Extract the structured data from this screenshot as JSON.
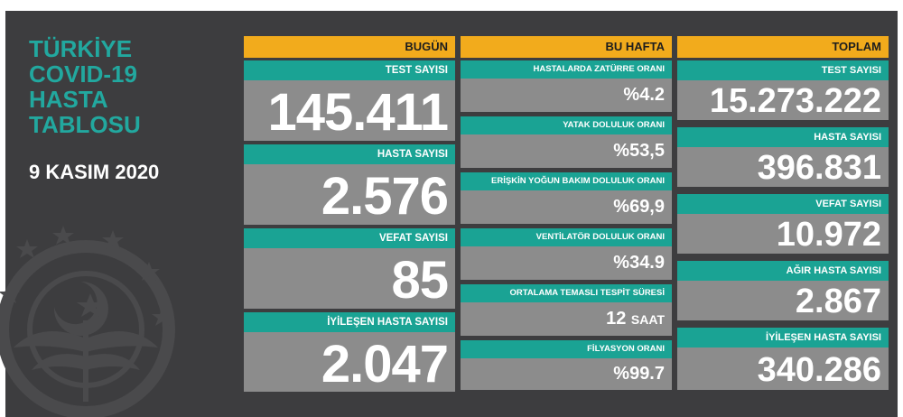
{
  "title": [
    "TÜRKİYE",
    "COVID-19",
    "HASTA",
    "TABLOSU"
  ],
  "date": "9 KASIM 2020",
  "columns": {
    "today": {
      "header": "BUGÜN",
      "items": [
        {
          "label": "TEST SAYISI",
          "value": "145.411"
        },
        {
          "label": "HASTA SAYISI",
          "value": "2.576"
        },
        {
          "label": "VEFAT SAYISI",
          "value": "85"
        },
        {
          "label": "İYİLEŞEN HASTA SAYISI",
          "value": "2.047"
        }
      ]
    },
    "week": {
      "header": "BU HAFTA",
      "items": [
        {
          "label": "HASTALARDA ZATÜRRE ORANI",
          "value": "%4.2"
        },
        {
          "label": "YATAK DOLULUK ORANI",
          "value": "%53,5"
        },
        {
          "label": "ERİŞKİN YOĞUN BAKIM DOLULUK ORANI",
          "value": "%69,9"
        },
        {
          "label": "VENTİLATÖR DOLULUK ORANI",
          "value": "%34.9"
        },
        {
          "label": "ORTALAMA TEMASLI TESPİT SÜRESİ",
          "value": "12",
          "unit": "SAAT"
        },
        {
          "label": "FİLYASYON ORANI",
          "value": "%99.7"
        }
      ]
    },
    "total": {
      "header": "TOPLAM",
      "items": [
        {
          "label": "TEST SAYISI",
          "value": "15.273.222"
        },
        {
          "label": "HASTA SAYISI",
          "value": "396.831"
        },
        {
          "label": "VEFAT SAYISI",
          "value": "10.972"
        },
        {
          "label": "AĞIR HASTA SAYISI",
          "value": "2.867"
        },
        {
          "label": "İYİLEŞEN HASTA SAYISI",
          "value": "340.286"
        }
      ]
    }
  },
  "colors": {
    "background": "#3d3d3f",
    "accent_teal": "#1aa394",
    "title_teal": "#22a89f",
    "header_orange": "#f2ab1c",
    "value_gray": "#8c8c8c"
  },
  "icons": [
    "ministry-emblem-icon"
  ]
}
